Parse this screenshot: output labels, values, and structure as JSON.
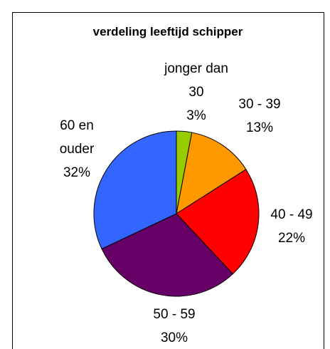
{
  "chart_data": {
    "type": "pie",
    "title": "verdeling leeftijd schipper",
    "categories": [
      "jonger dan 30",
      "30 - 39",
      "40 - 49",
      "50 - 59",
      "60 en ouder"
    ],
    "values": [
      3,
      13,
      22,
      30,
      32
    ],
    "value_labels": [
      "3%",
      "13%",
      "22%",
      "30%",
      "32%"
    ],
    "colors": [
      "#99cc00",
      "#ff9900",
      "#ff0000",
      "#660066",
      "#3366ff"
    ]
  }
}
